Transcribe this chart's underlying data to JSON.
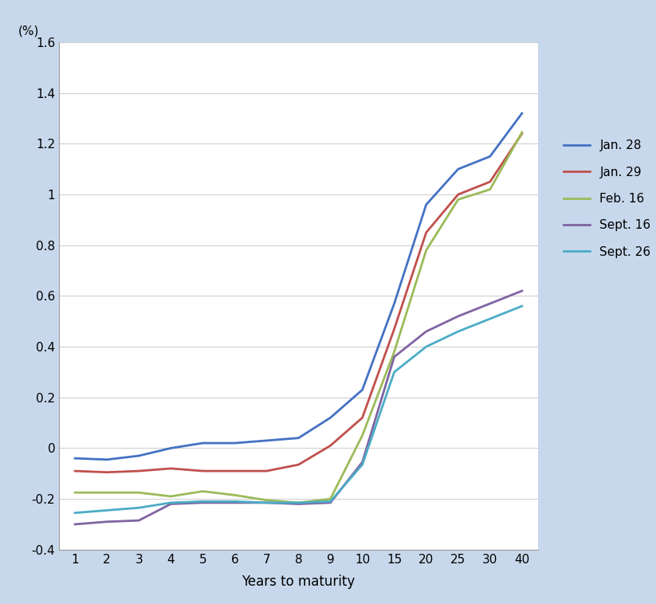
{
  "x_positions": [
    0,
    1,
    2,
    3,
    4,
    5,
    6,
    7,
    8,
    9,
    10,
    11,
    12,
    13,
    14
  ],
  "x_labels": [
    "1",
    "2",
    "3",
    "4",
    "5",
    "6",
    "7",
    "8",
    "9",
    "10",
    "15",
    "20",
    "25",
    "30",
    "40"
  ],
  "series": {
    "Jan. 28": {
      "color": "#4472C4",
      "values": [
        -0.04,
        -0.045,
        -0.03,
        0.0,
        0.02,
        0.02,
        0.03,
        0.04,
        0.12,
        0.23,
        0.57,
        0.96,
        1.1,
        1.15,
        1.32
      ]
    },
    "Jan. 29": {
      "color": "#C0504D",
      "values": [
        -0.09,
        -0.095,
        -0.09,
        -0.08,
        -0.09,
        -0.09,
        -0.09,
        -0.065,
        0.01,
        0.12,
        0.47,
        0.85,
        1.0,
        1.05,
        1.24
      ]
    },
    "Feb. 16": {
      "color": "#9BBB59",
      "values": [
        -0.175,
        -0.175,
        -0.175,
        -0.19,
        -0.17,
        -0.185,
        -0.205,
        -0.215,
        -0.2,
        0.05,
        0.38,
        0.78,
        0.98,
        1.02,
        1.245
      ]
    },
    "Sept. 16": {
      "color": "#8064A2",
      "values": [
        -0.3,
        -0.29,
        -0.285,
        -0.22,
        -0.215,
        -0.215,
        -0.215,
        -0.22,
        -0.215,
        -0.055,
        0.36,
        0.46,
        0.52,
        0.57,
        0.62
      ]
    },
    "Sept. 26": {
      "color": "#4BACC6",
      "values": [
        -0.255,
        -0.245,
        -0.235,
        -0.215,
        -0.21,
        -0.21,
        -0.215,
        -0.215,
        -0.21,
        -0.065,
        0.3,
        0.4,
        0.46,
        0.51,
        0.56
      ]
    }
  },
  "xlabel": "Years to maturity",
  "ylabel": "(%)",
  "ylim": [
    -0.4,
    1.6
  ],
  "yticks": [
    -0.4,
    -0.2,
    0,
    0.2,
    0.4,
    0.6,
    0.8,
    1.0,
    1.2,
    1.4,
    1.6
  ],
  "background_color": "#C8D8EC",
  "plot_bg_color": "#FFFFFF",
  "grid_color": "#D0D0D0",
  "axis_fontsize": 11,
  "legend_fontsize": 11,
  "linewidth": 2.0
}
